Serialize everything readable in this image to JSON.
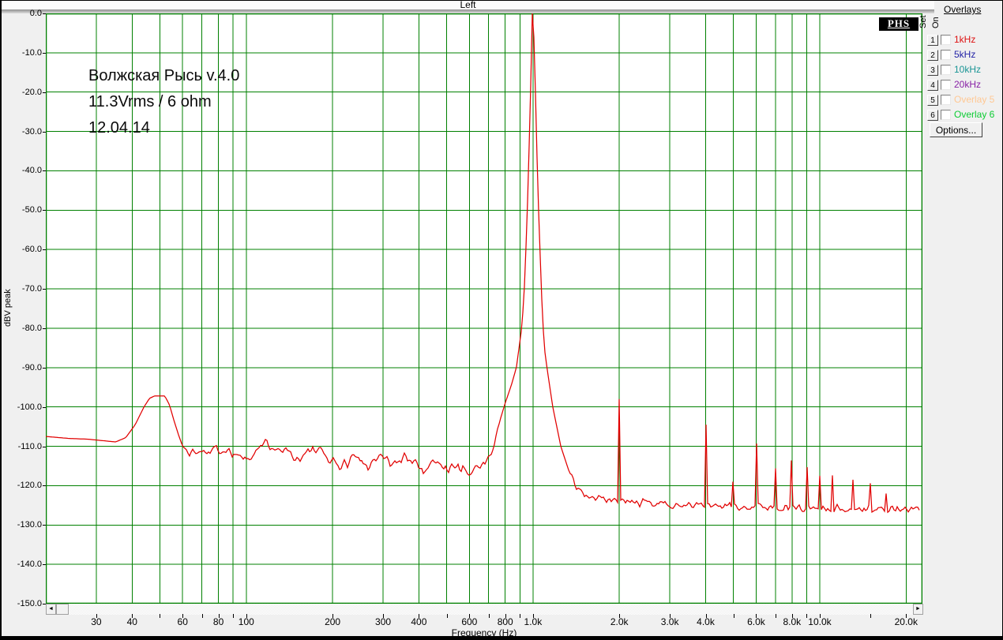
{
  "header": {
    "title": "Left"
  },
  "logo": {
    "text": "PHS"
  },
  "annotation": {
    "line1": "Волжская Рысь v.4.0",
    "line2": "11.3Vrms / 6 ohm",
    "line3": "12.04.14"
  },
  "scrollbar": {
    "left_arrow": "◄",
    "right_arrow": "►"
  },
  "overlays_panel": {
    "title": "Overlays",
    "col_set": "Set",
    "col_on": "On",
    "rows": [
      {
        "num": "1",
        "label": "1kHz",
        "color": "#dd1111"
      },
      {
        "num": "2",
        "label": "5kHz",
        "color": "#2222a6"
      },
      {
        "num": "3",
        "label": "10kHz",
        "color": "#1a9595"
      },
      {
        "num": "4",
        "label": "20kHz",
        "color": "#8822a6"
      },
      {
        "num": "5",
        "label": "Overlay 5",
        "color": "#ffc894"
      },
      {
        "num": "6",
        "label": "Overlay 6",
        "color": "#0ccc33"
      }
    ],
    "options_label": "Options..."
  },
  "chart_data": {
    "type": "line",
    "title": "Left",
    "xlabel": "Frequency (Hz)",
    "ylabel": "dBV peak",
    "x_scale": "log",
    "x_range_hz": [
      20,
      22800
    ],
    "ylim": [
      -150,
      0
    ],
    "grid": "on",
    "grid_color": "#008000",
    "trace_color": "#e10000",
    "y_tick_labels": [
      "0.0",
      "-10.0",
      "-20.0",
      "-30.0",
      "-40.0",
      "-50.0",
      "-60.0",
      "-70.0",
      "-80.0",
      "-90.0",
      "-100.0",
      "-110.0",
      "-120.0",
      "-130.0",
      "-140.0",
      "-150.0"
    ],
    "y_tick_db": [
      0,
      -10,
      -20,
      -30,
      -40,
      -50,
      -60,
      -70,
      -80,
      -90,
      -100,
      -110,
      -120,
      -130,
      -140,
      -150
    ],
    "x_major_ticks": [
      {
        "f": 30,
        "label": "30"
      },
      {
        "f": 40,
        "label": "40"
      },
      {
        "f": 60,
        "label": "60"
      },
      {
        "f": 80,
        "label": "80"
      },
      {
        "f": 100,
        "label": "100"
      },
      {
        "f": 200,
        "label": "200"
      },
      {
        "f": 300,
        "label": "300"
      },
      {
        "f": 400,
        "label": "400"
      },
      {
        "f": 600,
        "label": "600"
      },
      {
        "f": 800,
        "label": "800"
      },
      {
        "f": 1000,
        "label": "1.0k"
      },
      {
        "f": 2000,
        "label": "2.0k"
      },
      {
        "f": 3000,
        "label": "3.0k"
      },
      {
        "f": 4000,
        "label": "4.0k"
      },
      {
        "f": 6000,
        "label": "6.0k"
      },
      {
        "f": 8000,
        "label": "8.0k"
      },
      {
        "f": 10000,
        "label": "10.0k"
      },
      {
        "f": 20000,
        "label": "20.0k"
      }
    ],
    "x_minor_ticks_hz": [
      50,
      70,
      90,
      500,
      700,
      900,
      5000,
      7000,
      9000,
      15000
    ],
    "grid_frequencies_hz": [
      30,
      40,
      50,
      60,
      70,
      80,
      90,
      100,
      200,
      300,
      400,
      500,
      600,
      700,
      800,
      900,
      1000,
      2000,
      3000,
      4000,
      5000,
      6000,
      7000,
      8000,
      9000,
      10000,
      20000
    ],
    "fundamental_hz_db": [
      1000,
      0.0
    ],
    "harmonic_spikes_hz_db": [
      [
        2000,
        -98.0
      ],
      [
        4000,
        -104.5
      ],
      [
        5000,
        -119.0
      ],
      [
        6000,
        -109.3
      ],
      [
        7000,
        -115.6
      ],
      [
        8000,
        -113.6
      ],
      [
        9000,
        -115.3
      ],
      [
        10000,
        -117.5
      ],
      [
        11000,
        -117.4
      ],
      [
        13000,
        -118.5
      ],
      [
        15000,
        -119.4
      ],
      [
        17000,
        -122.0
      ]
    ],
    "envelope_points_hz_db": [
      [
        20,
        -107.5
      ],
      [
        24,
        -108.0
      ],
      [
        28,
        -108.2
      ],
      [
        32,
        -108.6
      ],
      [
        35,
        -108.9
      ],
      [
        38,
        -107.8
      ],
      [
        41,
        -104.5
      ],
      [
        44,
        -100.0
      ],
      [
        46,
        -97.8
      ],
      [
        48,
        -97.2
      ],
      [
        52,
        -97.2
      ],
      [
        54,
        -99.5
      ],
      [
        56,
        -103.5
      ],
      [
        58,
        -107.0
      ],
      [
        60,
        -110.0
      ],
      [
        63,
        -111.4
      ],
      [
        68,
        -111.6
      ],
      [
        74,
        -111.2
      ],
      [
        80,
        -110.6
      ],
      [
        86,
        -111.2
      ],
      [
        93,
        -112.0
      ],
      [
        100,
        -112.9
      ],
      [
        106,
        -111.4
      ],
      [
        112,
        -109.8
      ],
      [
        120,
        -109.5
      ],
      [
        128,
        -109.8
      ],
      [
        136,
        -110.6
      ],
      [
        145,
        -112.0
      ],
      [
        152,
        -113.3
      ],
      [
        160,
        -112.2
      ],
      [
        170,
        -110.9
      ],
      [
        180,
        -111.4
      ],
      [
        192,
        -112.8
      ],
      [
        205,
        -114.2
      ],
      [
        215,
        -115.2
      ],
      [
        225,
        -114.0
      ],
      [
        235,
        -112.4
      ],
      [
        245,
        -113.0
      ],
      [
        255,
        -114.0
      ],
      [
        268,
        -114.8
      ],
      [
        280,
        -113.6
      ],
      [
        292,
        -112.4
      ],
      [
        305,
        -112.6
      ],
      [
        318,
        -114.0
      ],
      [
        332,
        -114.8
      ],
      [
        345,
        -113.9
      ],
      [
        358,
        -112.7
      ],
      [
        372,
        -112.9
      ],
      [
        388,
        -113.9
      ],
      [
        405,
        -115.2
      ],
      [
        420,
        -116.2
      ],
      [
        438,
        -114.6
      ],
      [
        452,
        -112.8
      ],
      [
        468,
        -114.0
      ],
      [
        485,
        -115.8
      ],
      [
        500,
        -116.3
      ],
      [
        515,
        -115.0
      ],
      [
        532,
        -116.2
      ],
      [
        548,
        -114.8
      ],
      [
        565,
        -116.6
      ],
      [
        582,
        -115.2
      ],
      [
        600,
        -116.6
      ],
      [
        620,
        -115.9
      ],
      [
        640,
        -115.5
      ],
      [
        660,
        -114.6
      ],
      [
        680,
        -113.9
      ],
      [
        700,
        -112.5
      ],
      [
        725,
        -110.0
      ],
      [
        745,
        -107.0
      ],
      [
        770,
        -103.0
      ],
      [
        800,
        -99.0
      ],
      [
        840,
        -94.5
      ],
      [
        875,
        -90.0
      ],
      [
        913,
        -80.0
      ],
      [
        930,
        -72.0
      ],
      [
        940,
        -64.0
      ],
      [
        950,
        -55.0
      ],
      [
        958,
        -47.0
      ],
      [
        966,
        -38.0
      ],
      [
        974,
        -28.0
      ],
      [
        982,
        -18.0
      ],
      [
        990,
        -9.0
      ],
      [
        996,
        -3.0
      ],
      [
        1000,
        0.0
      ],
      [
        1004,
        -3.0
      ],
      [
        1010,
        -9.0
      ],
      [
        1018,
        -18.0
      ],
      [
        1026,
        -28.0
      ],
      [
        1034,
        -38.0
      ],
      [
        1042,
        -47.0
      ],
      [
        1052,
        -55.0
      ],
      [
        1062,
        -64.0
      ],
      [
        1072,
        -72.0
      ],
      [
        1085,
        -80.0
      ],
      [
        1100,
        -86.0
      ],
      [
        1121,
        -90.5
      ],
      [
        1172,
        -100.0
      ],
      [
        1250,
        -110.0
      ],
      [
        1330,
        -116.0
      ],
      [
        1420,
        -120.5
      ],
      [
        1520,
        -122.5
      ],
      [
        1620,
        -123.3
      ],
      [
        1750,
        -123.6
      ],
      [
        1900,
        -123.9
      ],
      [
        2100,
        -124.1
      ],
      [
        2400,
        -124.4
      ],
      [
        2800,
        -124.6
      ],
      [
        3300,
        -124.8
      ],
      [
        3900,
        -125.0
      ],
      [
        4600,
        -125.1
      ],
      [
        5400,
        -125.3
      ],
      [
        6300,
        -125.4
      ],
      [
        7400,
        -125.5
      ],
      [
        8600,
        -125.6
      ],
      [
        10000,
        -125.7
      ],
      [
        12000,
        -125.9
      ],
      [
        14000,
        -126.0
      ],
      [
        16500,
        -126.1
      ],
      [
        19000,
        -126.1
      ],
      [
        22800,
        -126.2
      ]
    ],
    "noise_jitter_db": 1.5,
    "legend_position": "none"
  }
}
